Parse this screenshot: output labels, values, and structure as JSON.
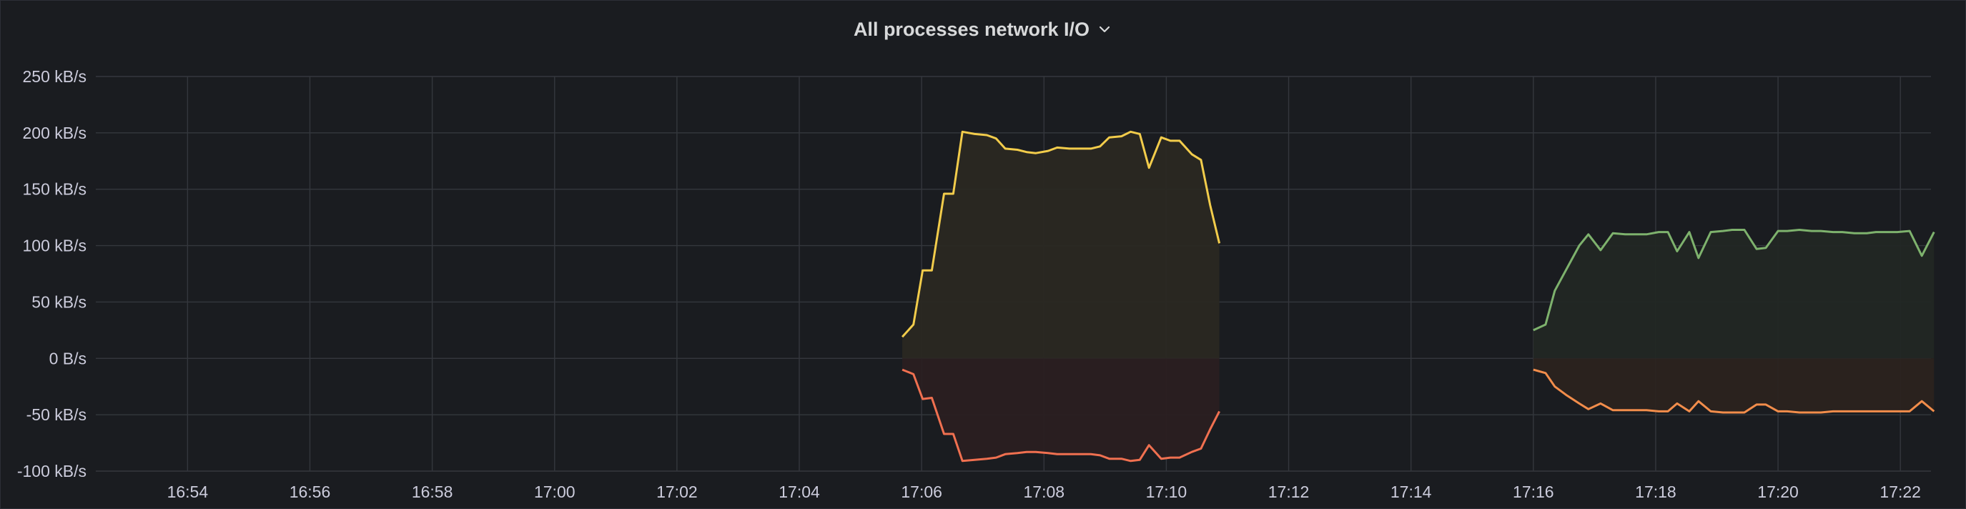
{
  "panel": {
    "title": "All processes network I/O",
    "title_menu_icon": "chevron-down-icon"
  },
  "chart_data": {
    "type": "area",
    "title": "All processes network I/O",
    "xlabel": "",
    "ylabel": "",
    "x_range": [
      "16:52:30",
      "17:22:30"
    ],
    "ylim": [
      -100,
      250
    ],
    "y_unit_ticks": [
      "250 kB/s",
      "200 kB/s",
      "150 kB/s",
      "100 kB/s",
      "50 kB/s",
      "0 B/s",
      "-50 kB/s",
      "-100 kB/s"
    ],
    "y_tick_values": [
      250,
      200,
      150,
      100,
      50,
      0,
      -50,
      -100
    ],
    "x_ticks": [
      "16:54",
      "16:56",
      "16:58",
      "17:00",
      "17:02",
      "17:04",
      "17:06",
      "17:08",
      "17:10",
      "17:12",
      "17:14",
      "17:16",
      "17:18",
      "17:20",
      "17:22"
    ],
    "grid": true,
    "legend": "none",
    "series": [
      {
        "color": "#f2cc4b",
        "fill": "#2a2822",
        "points": [
          [
            "17:05:41",
            19
          ],
          [
            "17:05:52",
            30
          ],
          [
            "17:06:01",
            78
          ],
          [
            "17:06:10",
            78
          ],
          [
            "17:06:22",
            146
          ],
          [
            "17:06:31",
            146
          ],
          [
            "17:06:40",
            201
          ],
          [
            "17:06:52",
            199
          ],
          [
            "17:07:04",
            198
          ],
          [
            "17:07:13",
            195
          ],
          [
            "17:07:22",
            186
          ],
          [
            "17:07:34",
            185
          ],
          [
            "17:07:43",
            183
          ],
          [
            "17:07:52",
            182
          ],
          [
            "17:08:04",
            184
          ],
          [
            "17:08:13",
            187
          ],
          [
            "17:08:25",
            186
          ],
          [
            "17:08:37",
            186
          ],
          [
            "17:08:46",
            186
          ],
          [
            "17:08:55",
            188
          ],
          [
            "17:09:04",
            196
          ],
          [
            "17:09:16",
            197
          ],
          [
            "17:09:25",
            201
          ],
          [
            "17:09:34",
            199
          ],
          [
            "17:09:43",
            169
          ],
          [
            "17:09:55",
            196
          ],
          [
            "17:10:04",
            193
          ],
          [
            "17:10:13",
            193
          ],
          [
            "17:10:25",
            181
          ],
          [
            "17:10:34",
            176
          ],
          [
            "17:10:43",
            136
          ],
          [
            "17:10:52",
            102
          ]
        ]
      },
      {
        "color": "#f07050",
        "fill": "#2a1f21",
        "points": [
          [
            "17:05:41",
            -10
          ],
          [
            "17:05:52",
            -14
          ],
          [
            "17:06:01",
            -36
          ],
          [
            "17:06:10",
            -35
          ],
          [
            "17:06:22",
            -67
          ],
          [
            "17:06:31",
            -67
          ],
          [
            "17:06:40",
            -91
          ],
          [
            "17:06:52",
            -90
          ],
          [
            "17:07:04",
            -89
          ],
          [
            "17:07:13",
            -88
          ],
          [
            "17:07:22",
            -85
          ],
          [
            "17:07:34",
            -84
          ],
          [
            "17:07:43",
            -83
          ],
          [
            "17:07:52",
            -83
          ],
          [
            "17:08:04",
            -84
          ],
          [
            "17:08:13",
            -85
          ],
          [
            "17:08:25",
            -85
          ],
          [
            "17:08:37",
            -85
          ],
          [
            "17:08:46",
            -85
          ],
          [
            "17:08:55",
            -86
          ],
          [
            "17:09:04",
            -89
          ],
          [
            "17:09:16",
            -89
          ],
          [
            "17:09:25",
            -91
          ],
          [
            "17:09:34",
            -90
          ],
          [
            "17:09:43",
            -77
          ],
          [
            "17:09:55",
            -89
          ],
          [
            "17:10:04",
            -88
          ],
          [
            "17:10:13",
            -88
          ],
          [
            "17:10:25",
            -83
          ],
          [
            "17:10:34",
            -80
          ],
          [
            "17:10:43",
            -63
          ],
          [
            "17:10:52",
            -47
          ]
        ]
      },
      {
        "color": "#7eb26d",
        "fill": "#222724",
        "points": [
          [
            "17:16:00",
            25
          ],
          [
            "17:16:12",
            30
          ],
          [
            "17:16:21",
            60
          ],
          [
            "17:16:33",
            80
          ],
          [
            "17:16:45",
            100
          ],
          [
            "17:16:54",
            110
          ],
          [
            "17:17:06",
            96
          ],
          [
            "17:17:18",
            111
          ],
          [
            "17:17:30",
            110
          ],
          [
            "17:17:42",
            110
          ],
          [
            "17:17:51",
            110
          ],
          [
            "17:18:03",
            112
          ],
          [
            "17:18:12",
            112
          ],
          [
            "17:18:21",
            95
          ],
          [
            "17:18:33",
            112
          ],
          [
            "17:18:42",
            89
          ],
          [
            "17:18:54",
            112
          ],
          [
            "17:19:06",
            113
          ],
          [
            "17:19:15",
            114
          ],
          [
            "17:19:27",
            114
          ],
          [
            "17:19:39",
            97
          ],
          [
            "17:19:48",
            98
          ],
          [
            "17:20:00",
            113
          ],
          [
            "17:20:09",
            113
          ],
          [
            "17:20:21",
            114
          ],
          [
            "17:20:33",
            113
          ],
          [
            "17:20:42",
            113
          ],
          [
            "17:20:54",
            112
          ],
          [
            "17:21:03",
            112
          ],
          [
            "17:21:15",
            111
          ],
          [
            "17:21:27",
            111
          ],
          [
            "17:21:36",
            112
          ],
          [
            "17:21:48",
            112
          ],
          [
            "17:21:57",
            112
          ],
          [
            "17:22:09",
            113
          ],
          [
            "17:22:21",
            91
          ],
          [
            "17:22:33",
            112
          ]
        ]
      },
      {
        "color": "#f28d4b",
        "fill": "#2b231f",
        "points": [
          [
            "17:16:00",
            -10
          ],
          [
            "17:16:12",
            -13
          ],
          [
            "17:16:21",
            -25
          ],
          [
            "17:16:33",
            -33
          ],
          [
            "17:16:45",
            -40
          ],
          [
            "17:16:54",
            -45
          ],
          [
            "17:17:06",
            -40
          ],
          [
            "17:17:18",
            -46
          ],
          [
            "17:17:30",
            -46
          ],
          [
            "17:17:42",
            -46
          ],
          [
            "17:17:51",
            -46
          ],
          [
            "17:18:03",
            -47
          ],
          [
            "17:18:12",
            -47
          ],
          [
            "17:18:21",
            -40
          ],
          [
            "17:18:33",
            -47
          ],
          [
            "17:18:42",
            -38
          ],
          [
            "17:18:54",
            -47
          ],
          [
            "17:19:06",
            -48
          ],
          [
            "17:19:15",
            -48
          ],
          [
            "17:19:27",
            -48
          ],
          [
            "17:19:39",
            -41
          ],
          [
            "17:19:48",
            -41
          ],
          [
            "17:20:00",
            -47
          ],
          [
            "17:20:09",
            -47
          ],
          [
            "17:20:21",
            -48
          ],
          [
            "17:20:33",
            -48
          ],
          [
            "17:20:42",
            -48
          ],
          [
            "17:20:54",
            -47
          ],
          [
            "17:21:03",
            -47
          ],
          [
            "17:21:15",
            -47
          ],
          [
            "17:21:27",
            -47
          ],
          [
            "17:21:36",
            -47
          ],
          [
            "17:21:48",
            -47
          ],
          [
            "17:21:57",
            -47
          ],
          [
            "17:22:09",
            -47
          ],
          [
            "17:22:21",
            -38
          ],
          [
            "17:22:33",
            -47
          ]
        ]
      }
    ]
  }
}
